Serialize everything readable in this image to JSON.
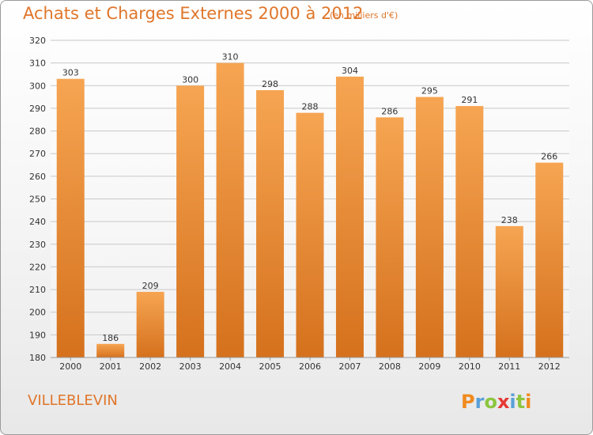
{
  "title": "Achats et Charges Externes 2000 à 2012",
  "subtitle": "(en milliers d'€)",
  "commune": "VILLEBLEVIN",
  "logo_text": "Proxiti",
  "colors": {
    "bar_top": "#f6a552",
    "bar_bottom": "#d5711d",
    "accent": "#e0762a",
    "grid": "#c8c8c8"
  },
  "chart_data": {
    "type": "bar",
    "title": "Achats et Charges Externes 2000 à 2012",
    "subtitle": "(en milliers d'€)",
    "categories": [
      "2000",
      "2001",
      "2002",
      "2003",
      "2004",
      "2005",
      "2006",
      "2007",
      "2008",
      "2009",
      "2010",
      "2011",
      "2012"
    ],
    "values": [
      303,
      186,
      209,
      300,
      310,
      298,
      288,
      304,
      286,
      295,
      291,
      238,
      266
    ],
    "ylim": [
      180,
      320
    ],
    "yticks": [
      180,
      190,
      200,
      210,
      220,
      230,
      240,
      250,
      260,
      270,
      280,
      290,
      300,
      310,
      320
    ],
    "grid": true,
    "legend": "none"
  }
}
